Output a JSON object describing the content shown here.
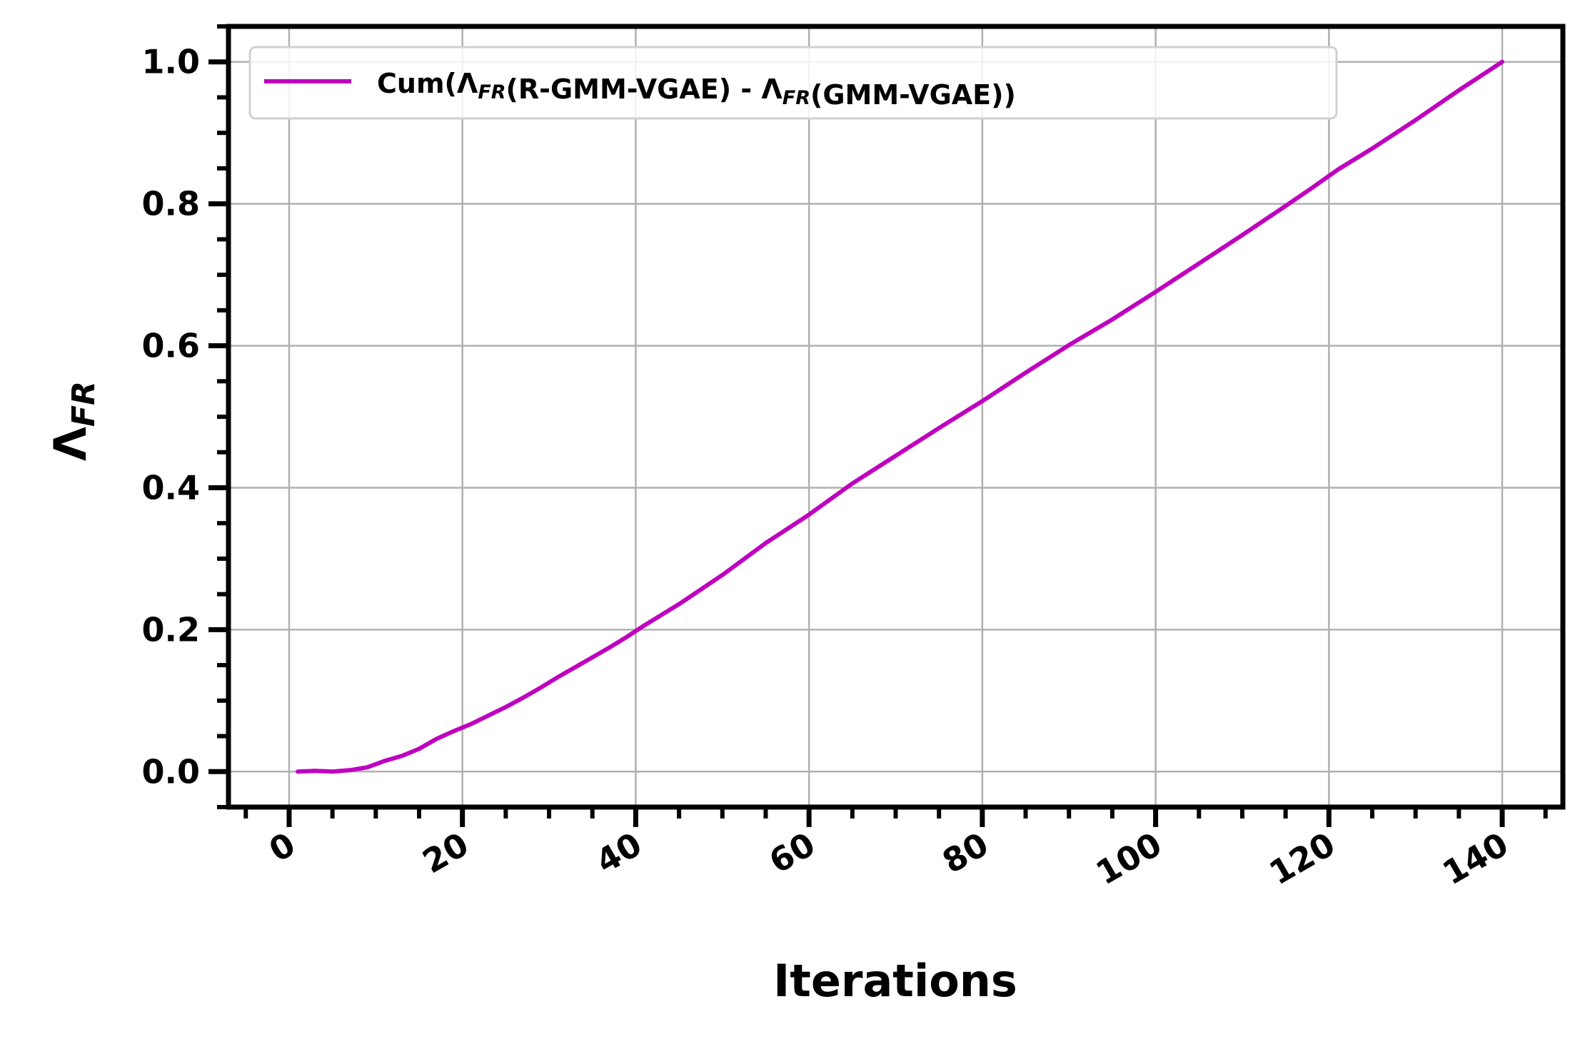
{
  "chart_data": {
    "type": "line",
    "title": "",
    "xlabel": "Iterations",
    "ylabel": {
      "main": "Λ",
      "sub": "FR"
    },
    "xlim": [
      -7,
      147
    ],
    "ylim": [
      -0.05,
      1.05
    ],
    "xticks": [
      0,
      20,
      40,
      60,
      80,
      100,
      120,
      140
    ],
    "xtick_labels": [
      "0",
      "20",
      "40",
      "60",
      "80",
      "100",
      "120",
      "140"
    ],
    "xtick_label_rotation": -30,
    "x_minor_step": 5,
    "yticks": [
      0.0,
      0.2,
      0.4,
      0.6,
      0.8,
      1.0
    ],
    "ytick_labels": [
      "0.0",
      "0.2",
      "0.4",
      "0.6",
      "0.8",
      "1.0"
    ],
    "y_minor_step": 0.05,
    "grid": true,
    "legend": {
      "placement": "top-left",
      "entries": [
        {
          "parts": [
            {
              "t": "Cum(Λ"
            },
            {
              "t": "FR",
              "sub": true
            },
            {
              "t": "(R-GMM-VGAE) - Λ"
            },
            {
              "t": "FR",
              "sub": true
            },
            {
              "t": "(GMM-VGAE))"
            }
          ]
        }
      ]
    },
    "series": [
      {
        "color": "#bf00bf",
        "x": [
          1,
          3,
          5,
          7,
          9,
          11,
          13,
          15,
          17,
          19,
          21,
          23,
          25,
          27,
          29,
          31,
          33,
          35,
          37,
          39,
          41,
          45,
          50,
          55,
          60,
          65,
          70,
          75,
          80,
          85,
          90,
          95,
          100,
          105,
          110,
          115,
          118,
          121,
          125,
          130,
          135,
          140
        ],
        "y": [
          0.0,
          0.001,
          0.0,
          0.002,
          0.006,
          0.015,
          0.022,
          0.032,
          0.046,
          0.057,
          0.067,
          0.079,
          0.091,
          0.104,
          0.118,
          0.133,
          0.147,
          0.161,
          0.175,
          0.19,
          0.206,
          0.236,
          0.277,
          0.322,
          0.362,
          0.406,
          0.445,
          0.484,
          0.522,
          0.562,
          0.601,
          0.637,
          0.676,
          0.716,
          0.756,
          0.797,
          0.822,
          0.848,
          0.878,
          0.918,
          0.96,
          1.0
        ]
      }
    ]
  }
}
